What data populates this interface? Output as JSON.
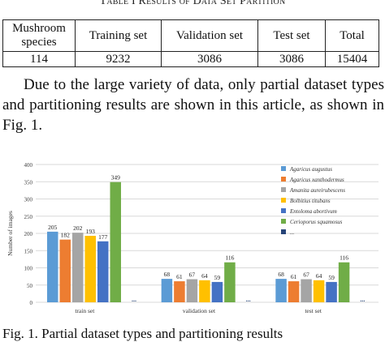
{
  "table": {
    "caption": "Table I Results of Data Set Partition",
    "headers": [
      "Mushroom species",
      "Training set",
      "Validation set",
      "Test set",
      "Total"
    ],
    "row": [
      "114",
      "9232",
      "3086",
      "3086",
      "15404"
    ]
  },
  "paragraph": "Due to the large variety of data, only partial dataset types and partitioning results are shown in this article, as shown in Fig. 1.",
  "figure_caption": "Fig. 1. Partial dataset types and partitioning results",
  "chart_data": {
    "type": "bar",
    "categories": [
      "train set",
      "validation set",
      "test set"
    ],
    "ylabel": "Number of images",
    "xlabel": "",
    "ylim": [
      0,
      400
    ],
    "yticks": [
      0,
      50,
      100,
      150,
      200,
      250,
      300,
      350,
      400
    ],
    "grid": true,
    "legend_position": "right",
    "series": [
      {
        "name": "Agaricus augustus",
        "color": "#5b9bd5",
        "values": [
          205,
          68,
          68
        ]
      },
      {
        "name": "Agaricus xanthodermus",
        "color": "#ed7d31",
        "values": [
          182,
          61,
          61
        ]
      },
      {
        "name": "Amanita aureirubescens",
        "color": "#a5a5a5",
        "values": [
          202,
          67,
          67
        ]
      },
      {
        "name": "Bolbitius titubans",
        "color": "#ffc000",
        "values": [
          193,
          64,
          64
        ]
      },
      {
        "name": "Entoloma abortivum",
        "color": "#4472c4",
        "values": [
          177,
          59,
          59
        ]
      },
      {
        "name": "Cerioporus squamosus",
        "color": "#70ad47",
        "values": [
          349,
          116,
          116
        ]
      },
      {
        "name": "...",
        "color": "#264478",
        "values": [
          null,
          null,
          null
        ],
        "marker_label": "..."
      }
    ]
  }
}
